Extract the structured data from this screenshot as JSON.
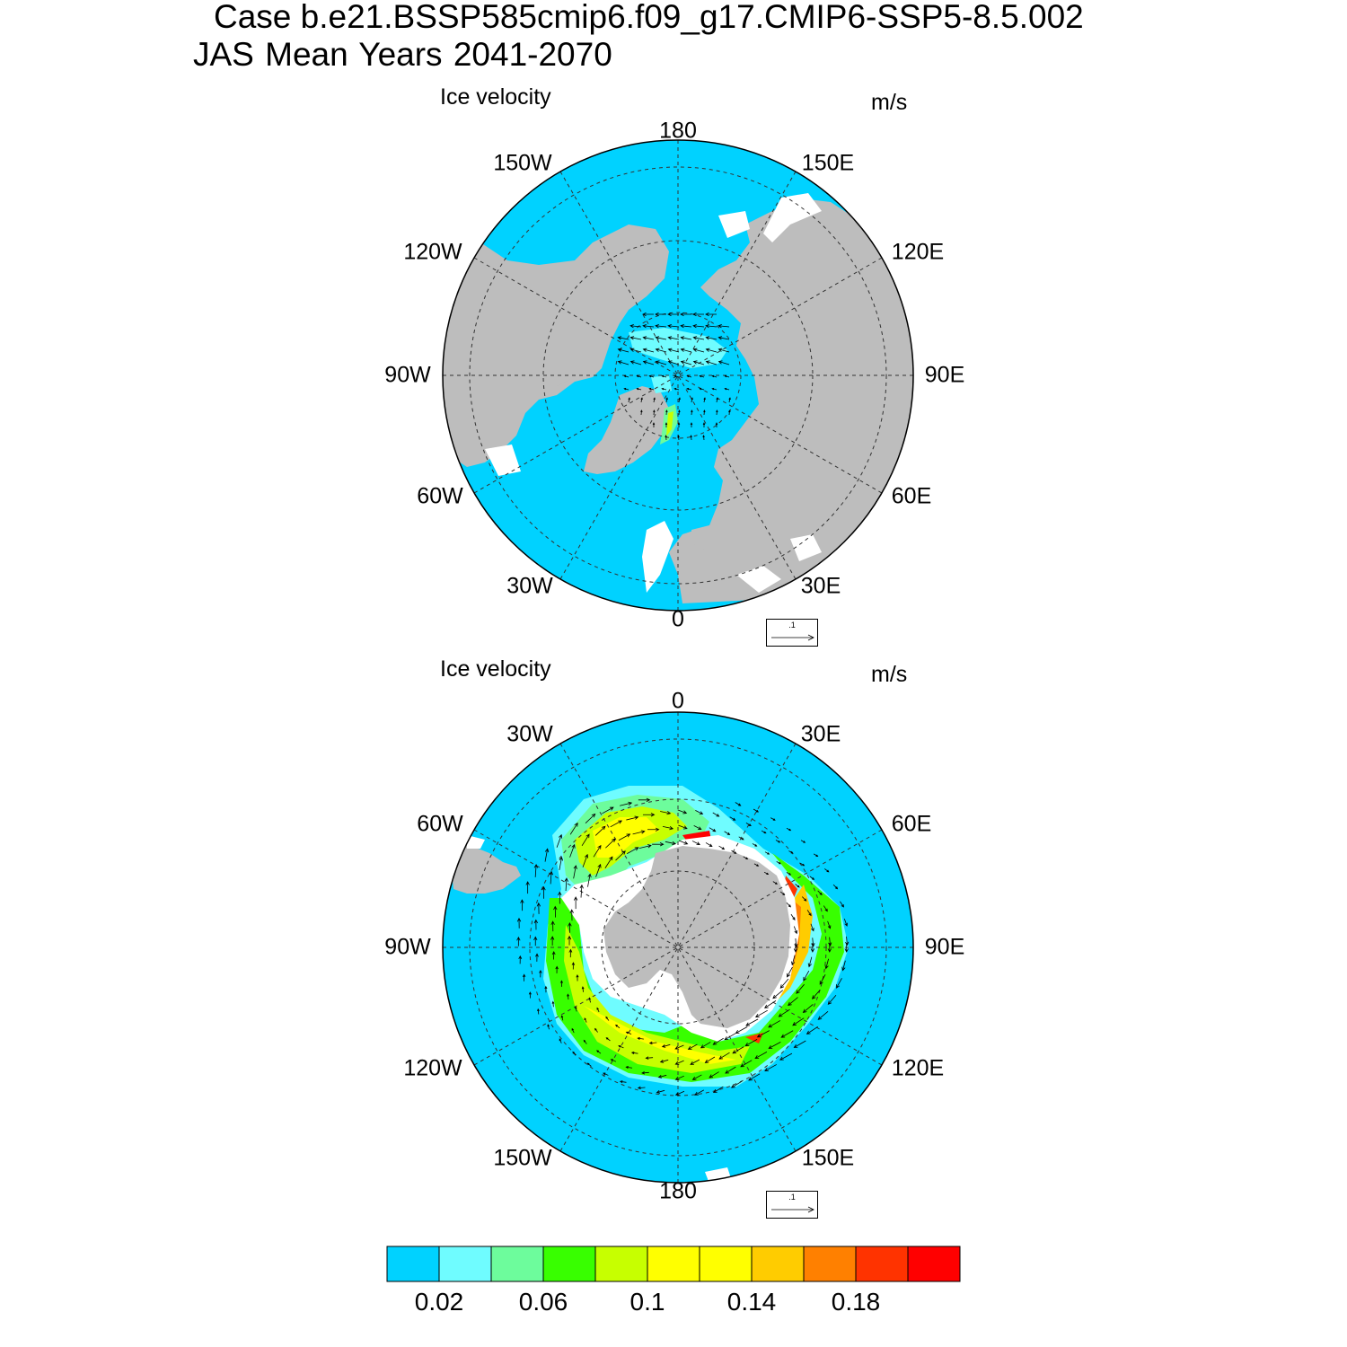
{
  "title": {
    "line1": "Case b.e21.BSSP585cmip6.f09_g17.CMIP6-SSP5-8.5.002",
    "line2": "JAS Mean   Years 2041-2070"
  },
  "colors": {
    "ocean": "#00d2ff",
    "land": "#bdbdbd",
    "missing": "#ffffff",
    "grid": "#333333"
  },
  "panels": [
    {
      "title": "Ice velocity",
      "unit": "m/s",
      "hemisphere": "north",
      "lon_labels": [
        "180",
        "150E",
        "120E",
        "90E",
        "60E",
        "30E",
        "0",
        "30W",
        "60W",
        "90W",
        "120W",
        "150W"
      ],
      "reference_vector": ".1"
    },
    {
      "title": "Ice velocity",
      "unit": "m/s",
      "hemisphere": "south",
      "lon_labels": [
        "0",
        "30E",
        "60E",
        "90E",
        "120E",
        "150E",
        "180",
        "150W",
        "120W",
        "90W",
        "60W",
        "30W"
      ],
      "reference_vector": ".1"
    }
  ],
  "colorbar": {
    "colors": [
      "#00d2ff",
      "#6ffcff",
      "#6dfc9c",
      "#38ff00",
      "#c7ff00",
      "#ffff00",
      "#ffff00",
      "#ffcc00",
      "#ff8000",
      "#ff3300",
      "#ff0000"
    ],
    "labels": [
      "0.02",
      "0.06",
      "0.1",
      "0.14",
      "0.18"
    ]
  }
}
